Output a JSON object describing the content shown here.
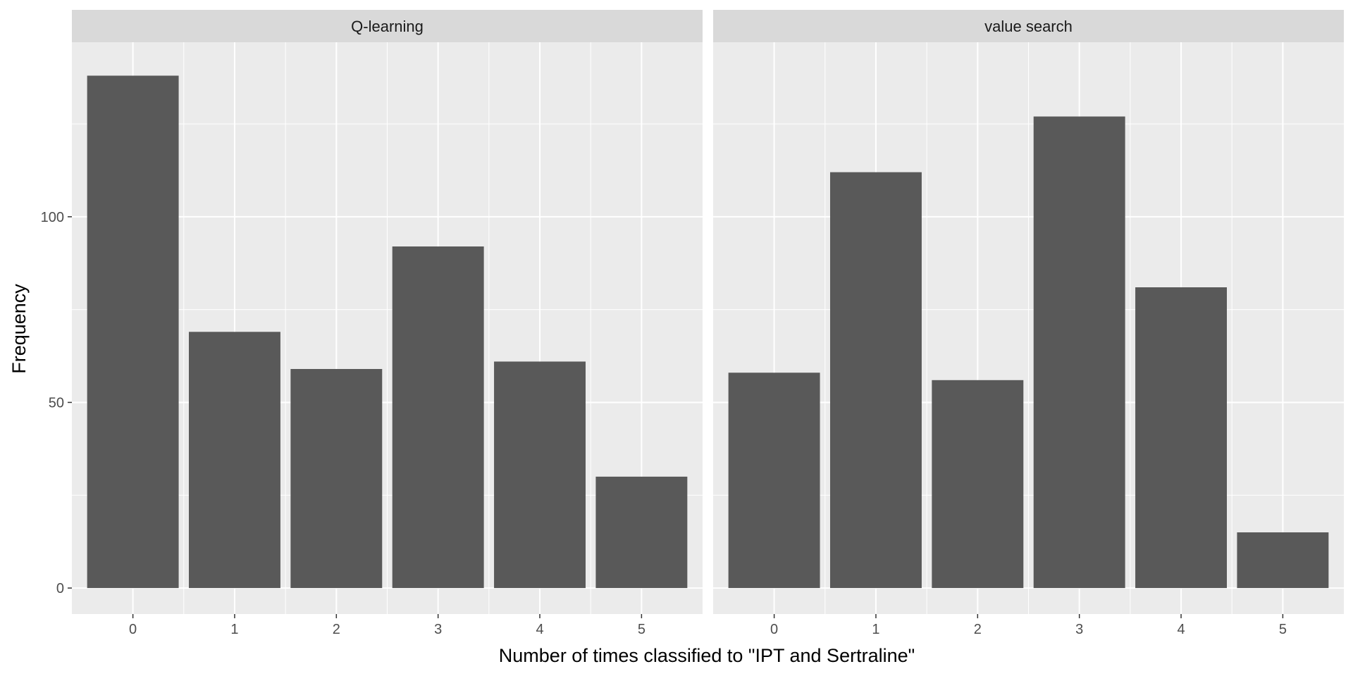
{
  "chart_data": {
    "type": "bar",
    "facet_layout": "side-by-side",
    "xlabel": "Number of times classified to \"IPT and Sertraline\"",
    "ylabel": "Frequency",
    "categories": [
      "0",
      "1",
      "2",
      "3",
      "4",
      "5"
    ],
    "ylim": [
      -7,
      147
    ],
    "yticks": [
      0,
      50,
      100
    ],
    "grid": true,
    "facets": [
      {
        "name": "Q-learning",
        "values": [
          138,
          69,
          59,
          92,
          61,
          30
        ]
      },
      {
        "name": "value search",
        "values": [
          58,
          112,
          56,
          127,
          81,
          15
        ]
      }
    ],
    "colors": {
      "bar": "#595959",
      "panel_background": "#ebebeb",
      "strip_background": "#d9d9d9",
      "gridline": "#ffffff"
    }
  }
}
